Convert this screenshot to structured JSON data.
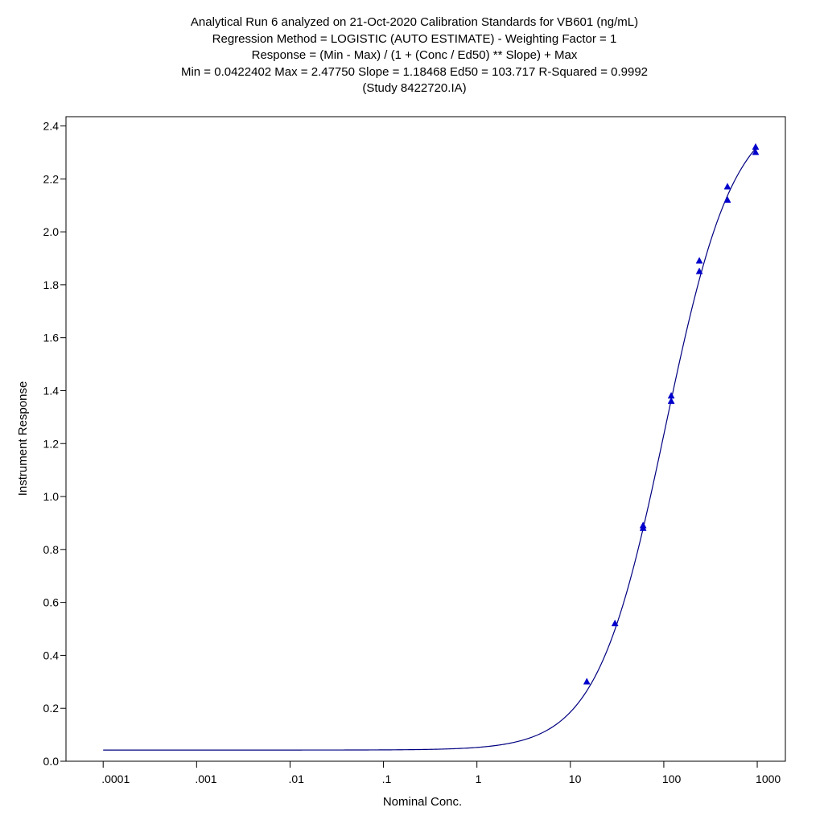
{
  "header": {
    "line1": "Analytical Run 6 analyzed on 21-Oct-2020 Calibration Standards for VB601 (ng/mL)",
    "line2": "Regression Method = LOGISTIC (AUTO ESTIMATE) - Weighting Factor = 1",
    "line3": "Response = (Min - Max) / (1 + (Conc / Ed50) ** Slope) + Max",
    "line4": "Min = 0.0422402 Max = 2.47750 Slope = 1.18468 Ed50 = 103.717 R-Squared = 0.9992",
    "line5": "(Study 8422720.IA)"
  },
  "chart_data": {
    "type": "scatter",
    "xlabel": "Nominal Conc.",
    "ylabel": "Instrument Response",
    "xscale": "log",
    "xlim": [
      4e-05,
      2000
    ],
    "ylim": [
      0.0,
      2.435
    ],
    "x_ticks": [
      {
        "value": 0.0001,
        "label": ".0001"
      },
      {
        "value": 0.001,
        "label": ".001"
      },
      {
        "value": 0.01,
        "label": ".01"
      },
      {
        "value": 0.1,
        "label": ".1"
      },
      {
        "value": 1,
        "label": "1"
      },
      {
        "value": 10,
        "label": "10"
      },
      {
        "value": 100,
        "label": "100"
      },
      {
        "value": 1000,
        "label": "1000"
      }
    ],
    "y_ticks": [
      "0.0",
      "0.2",
      "0.4",
      "0.6",
      "0.8",
      "1.0",
      "1.2",
      "1.4",
      "1.6",
      "1.8",
      "2.0",
      "2.2",
      "2.4"
    ],
    "fit": {
      "model": "logistic",
      "min": 0.0422402,
      "max": 2.4775,
      "slope": 1.18468,
      "ed50": 103.717
    },
    "points": [
      {
        "x": 15,
        "y": 0.3
      },
      {
        "x": 30,
        "y": 0.52
      },
      {
        "x": 60,
        "y": 0.88
      },
      {
        "x": 60,
        "y": 0.89
      },
      {
        "x": 120,
        "y": 1.36
      },
      {
        "x": 120,
        "y": 1.38
      },
      {
        "x": 240,
        "y": 1.85
      },
      {
        "x": 240,
        "y": 1.89
      },
      {
        "x": 480,
        "y": 2.12
      },
      {
        "x": 480,
        "y": 2.17
      },
      {
        "x": 960,
        "y": 2.3
      },
      {
        "x": 960,
        "y": 2.32
      }
    ],
    "colors": {
      "curve": "#000080",
      "marker": "#0000cc"
    },
    "grid": false
  }
}
